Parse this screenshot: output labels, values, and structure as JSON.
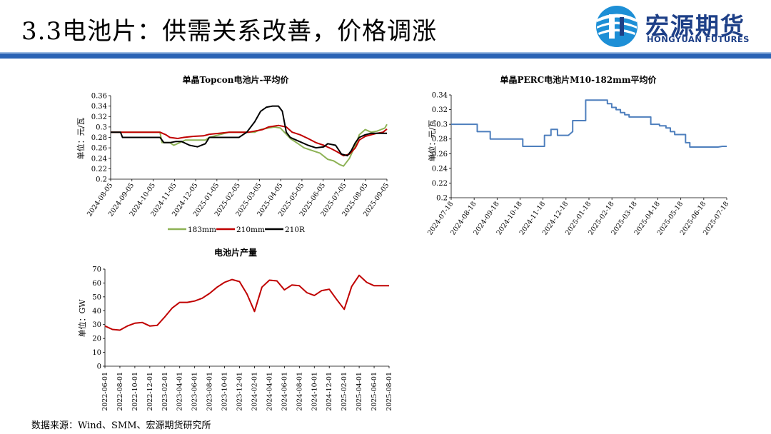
{
  "slide": {
    "title": "3.3电池片：供需关系改善，价格调涨",
    "logo_cn": "宏源期货",
    "logo_en": "HONGYUAN FUTURES",
    "source": "数据来源：Wind、SMM、宏源期货研究所",
    "colors": {
      "brand_blue": "#1d3f87",
      "band_blue": "#2a63b4"
    }
  },
  "chart_data": [
    {
      "id": "topcon",
      "type": "line",
      "title": "单晶Topcon电池片-平均价",
      "ylabel": "单位：元/瓦",
      "ylim": [
        0.2,
        0.36
      ],
      "yticks": [
        "0.2",
        "0.22",
        "0.24",
        "0.26",
        "0.28",
        "0.3",
        "0.32",
        "0.34",
        "0.36"
      ],
      "xticks": [
        "2024-08-05",
        "2024-09-05",
        "2024-10-05",
        "2024-11-05",
        "2024-12-05",
        "2025-01-05",
        "2025-02-05",
        "2025-03-05",
        "2025-04-05",
        "2025-05-05",
        "2025-06-05",
        "2025-07-05",
        "2025-08-05",
        "2025-09-05"
      ],
      "legend_position": "bottom",
      "series": [
        {
          "name": "183mm",
          "color": "#8db255",
          "points": [
            [
              0,
              0.29
            ],
            [
              0.3,
              0.29
            ],
            [
              0.6,
              0.29
            ],
            [
              1.0,
              0.29
            ],
            [
              1.5,
              0.29
            ],
            [
              2.0,
              0.29
            ],
            [
              2.5,
              0.29
            ],
            [
              2.6,
              0.27
            ],
            [
              3.0,
              0.27
            ],
            [
              3.2,
              0.265
            ],
            [
              3.5,
              0.27
            ],
            [
              3.8,
              0.275
            ],
            [
              4.3,
              0.275
            ],
            [
              4.8,
              0.275
            ],
            [
              5.0,
              0.28
            ],
            [
              5.5,
              0.285
            ],
            [
              6.0,
              0.29
            ],
            [
              6.5,
              0.29
            ],
            [
              7.0,
              0.29
            ],
            [
              7.3,
              0.29
            ],
            [
              7.6,
              0.295
            ],
            [
              8.0,
              0.298
            ],
            [
              8.3,
              0.3
            ],
            [
              8.6,
              0.298
            ],
            [
              8.8,
              0.29
            ],
            [
              9.1,
              0.278
            ],
            [
              9.5,
              0.268
            ],
            [
              9.8,
              0.26
            ],
            [
              10.2,
              0.255
            ],
            [
              10.6,
              0.25
            ],
            [
              11.0,
              0.238
            ],
            [
              11.3,
              0.235
            ],
            [
              11.6,
              0.228
            ],
            [
              11.8,
              0.225
            ],
            [
              12.1,
              0.24
            ],
            [
              12.4,
              0.265
            ],
            [
              12.6,
              0.285
            ],
            [
              12.9,
              0.295
            ],
            [
              13.2,
              0.29
            ],
            [
              13.5,
              0.292
            ],
            [
              13.7,
              0.295
            ],
            [
              13.9,
              0.298
            ],
            [
              14.0,
              0.305
            ]
          ]
        },
        {
          "name": "210mm",
          "color": "#c00000",
          "points": [
            [
              0,
              0.29
            ],
            [
              0.5,
              0.29
            ],
            [
              1.0,
              0.29
            ],
            [
              1.5,
              0.29
            ],
            [
              2.0,
              0.29
            ],
            [
              2.5,
              0.29
            ],
            [
              2.8,
              0.285
            ],
            [
              3.0,
              0.28
            ],
            [
              3.4,
              0.278
            ],
            [
              3.7,
              0.28
            ],
            [
              4.2,
              0.282
            ],
            [
              4.7,
              0.283
            ],
            [
              5.0,
              0.286
            ],
            [
              5.5,
              0.288
            ],
            [
              6.0,
              0.29
            ],
            [
              6.5,
              0.29
            ],
            [
              7.0,
              0.29
            ],
            [
              7.3,
              0.292
            ],
            [
              7.7,
              0.295
            ],
            [
              8.0,
              0.3
            ],
            [
              8.5,
              0.303
            ],
            [
              8.9,
              0.3
            ],
            [
              9.2,
              0.29
            ],
            [
              9.6,
              0.285
            ],
            [
              10.0,
              0.278
            ],
            [
              10.4,
              0.27
            ],
            [
              10.8,
              0.265
            ],
            [
              11.2,
              0.258
            ],
            [
              11.5,
              0.252
            ],
            [
              11.8,
              0.245
            ],
            [
              12.1,
              0.248
            ],
            [
              12.4,
              0.26
            ],
            [
              12.6,
              0.275
            ],
            [
              12.9,
              0.282
            ],
            [
              13.2,
              0.285
            ],
            [
              13.5,
              0.288
            ],
            [
              13.8,
              0.29
            ],
            [
              14.0,
              0.296
            ]
          ]
        },
        {
          "name": "210R",
          "color": "#000000",
          "points": [
            [
              0,
              0.29
            ],
            [
              0.5,
              0.29
            ],
            [
              0.6,
              0.28
            ],
            [
              1.0,
              0.28
            ],
            [
              1.5,
              0.28
            ],
            [
              2.0,
              0.28
            ],
            [
              2.5,
              0.28
            ],
            [
              2.7,
              0.27
            ],
            [
              3.0,
              0.27
            ],
            [
              3.3,
              0.272
            ],
            [
              3.6,
              0.272
            ],
            [
              4.0,
              0.265
            ],
            [
              4.4,
              0.262
            ],
            [
              4.8,
              0.268
            ],
            [
              5.0,
              0.28
            ],
            [
              5.5,
              0.28
            ],
            [
              6.0,
              0.28
            ],
            [
              6.5,
              0.28
            ],
            [
              6.9,
              0.29
            ],
            [
              7.1,
              0.3
            ],
            [
              7.3,
              0.31
            ],
            [
              7.6,
              0.33
            ],
            [
              7.9,
              0.338
            ],
            [
              8.2,
              0.34
            ],
            [
              8.5,
              0.34
            ],
            [
              8.7,
              0.33
            ],
            [
              8.9,
              0.29
            ],
            [
              9.1,
              0.28
            ],
            [
              9.4,
              0.275
            ],
            [
              9.7,
              0.27
            ],
            [
              10.0,
              0.265
            ],
            [
              10.4,
              0.26
            ],
            [
              10.8,
              0.262
            ],
            [
              11.0,
              0.268
            ],
            [
              11.4,
              0.265
            ],
            [
              11.7,
              0.248
            ],
            [
              12.0,
              0.245
            ],
            [
              12.2,
              0.255
            ],
            [
              12.4,
              0.27
            ],
            [
              12.6,
              0.28
            ],
            [
              12.9,
              0.285
            ],
            [
              13.2,
              0.288
            ],
            [
              13.5,
              0.288
            ],
            [
              13.8,
              0.288
            ],
            [
              14.0,
              0.288
            ]
          ]
        }
      ]
    },
    {
      "id": "perc",
      "type": "line",
      "title": "单晶PERC电池片M10-182mm平均价",
      "ylabel": "单位：元/瓦",
      "ylim": [
        0.2,
        0.34
      ],
      "yticks": [
        "0.2",
        "0.22",
        "0.24",
        "0.26",
        "0.28",
        "0.3",
        "0.32",
        "0.34"
      ],
      "xticks": [
        "2024-07-18",
        "2024-08-18",
        "2024-09-18",
        "2024-10-18",
        "2024-11-18",
        "2024-12-18",
        "2025-01-18",
        "2025-02-18",
        "2025-03-18",
        "2025-04-18",
        "2025-05-18",
        "2025-06-18",
        "2025-07-18"
      ],
      "series": [
        {
          "name": "PERC M10-182mm",
          "color": "#4e7fbd",
          "points": [
            [
              0,
              0.3
            ],
            [
              1.0,
              0.3
            ],
            [
              1.2,
              0.3
            ],
            [
              1.2,
              0.29
            ],
            [
              1.8,
              0.29
            ],
            [
              1.8,
              0.28
            ],
            [
              3.3,
              0.28
            ],
            [
              3.3,
              0.27
            ],
            [
              4.3,
              0.27
            ],
            [
              4.3,
              0.285
            ],
            [
              4.6,
              0.285
            ],
            [
              4.6,
              0.293
            ],
            [
              4.9,
              0.293
            ],
            [
              4.9,
              0.285
            ],
            [
              5.4,
              0.285
            ],
            [
              5.6,
              0.29
            ],
            [
              5.6,
              0.305
            ],
            [
              6.2,
              0.305
            ],
            [
              6.2,
              0.333
            ],
            [
              7.2,
              0.333
            ],
            [
              7.2,
              0.328
            ],
            [
              7.4,
              0.328
            ],
            [
              7.4,
              0.323
            ],
            [
              7.6,
              0.323
            ],
            [
              7.6,
              0.32
            ],
            [
              7.8,
              0.32
            ],
            [
              7.8,
              0.316
            ],
            [
              8.0,
              0.316
            ],
            [
              8.0,
              0.313
            ],
            [
              8.2,
              0.313
            ],
            [
              8.2,
              0.31
            ],
            [
              9.2,
              0.31
            ],
            [
              9.2,
              0.3
            ],
            [
              9.6,
              0.3
            ],
            [
              9.6,
              0.298
            ],
            [
              9.9,
              0.298
            ],
            [
              9.9,
              0.295
            ],
            [
              10.1,
              0.295
            ],
            [
              10.1,
              0.29
            ],
            [
              10.3,
              0.29
            ],
            [
              10.3,
              0.286
            ],
            [
              10.8,
              0.286
            ],
            [
              10.8,
              0.275
            ],
            [
              11.0,
              0.275
            ],
            [
              11.0,
              0.269
            ],
            [
              12.3,
              0.269
            ],
            [
              12.5,
              0.27
            ],
            [
              12.7,
              0.27
            ]
          ]
        }
      ]
    },
    {
      "id": "output",
      "type": "line",
      "title": "电池片产量",
      "ylabel": "单位：GW",
      "ylim": [
        0,
        70
      ],
      "yticks": [
        "0",
        "10",
        "20",
        "30",
        "40",
        "50",
        "60",
        "70"
      ],
      "xticks": [
        "2022-06-01",
        "2022-08-01",
        "2022-10-01",
        "2022-12-01",
        "2023-02-01",
        "2023-04-01",
        "2023-06-01",
        "2023-08-01",
        "2023-10-01",
        "2023-12-01",
        "2024-02-01",
        "2024-04-01",
        "2024-06-01",
        "2024-08-01",
        "2024-10-01",
        "2024-12-01",
        "2025-02-01",
        "2025-04-01",
        "2025-06-01",
        "2025-08-01"
      ],
      "series": [
        {
          "name": "电池片产量",
          "color": "#c00000",
          "x": [
            "2022-06",
            "2022-07",
            "2022-08",
            "2022-09",
            "2022-10",
            "2022-11",
            "2022-12",
            "2023-01",
            "2023-02",
            "2023-03",
            "2023-04",
            "2023-05",
            "2023-06",
            "2023-07",
            "2023-08",
            "2023-09",
            "2023-10",
            "2023-11",
            "2023-12",
            "2024-01",
            "2024-02",
            "2024-03",
            "2024-04",
            "2024-05",
            "2024-06",
            "2024-07",
            "2024-08",
            "2024-09",
            "2024-10",
            "2024-11",
            "2024-12",
            "2025-01",
            "2025-02",
            "2025-03",
            "2025-04",
            "2025-05",
            "2025-06",
            "2025-07",
            "2025-08"
          ],
          "values": [
            29,
            26.5,
            26,
            29,
            31,
            31.5,
            29,
            29.5,
            35.5,
            42,
            46,
            46,
            47,
            49,
            52.5,
            57,
            60.5,
            62.5,
            61,
            52,
            39.5,
            57,
            62,
            61.5,
            55,
            58.5,
            58,
            53,
            51,
            54.5,
            55.5,
            48,
            41,
            57.5,
            65.5,
            60.5,
            58,
            58,
            58
          ]
        }
      ]
    }
  ]
}
